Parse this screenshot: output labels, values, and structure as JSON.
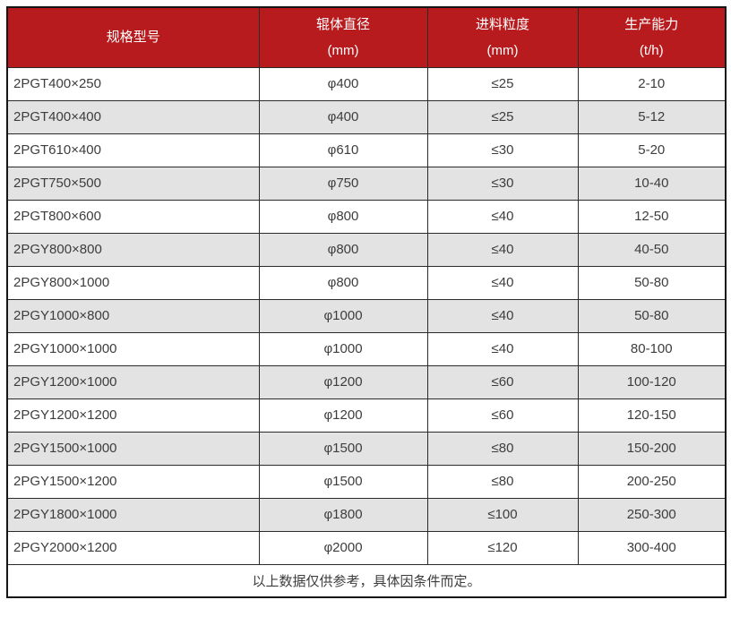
{
  "table": {
    "columns": [
      {
        "line1": "规格型号",
        "line2": ""
      },
      {
        "line1": "辊体直径",
        "line2": "(mm)"
      },
      {
        "line1": "进料粒度",
        "line2": "(mm)"
      },
      {
        "line1": "生产能力",
        "line2": "(t/h)"
      }
    ],
    "rows": [
      [
        "2PGT400×250",
        "φ400",
        "≤25",
        "2-10"
      ],
      [
        "2PGT400×400",
        "φ400",
        "≤25",
        "5-12"
      ],
      [
        "2PGT610×400",
        "φ610",
        "≤30",
        "5-20"
      ],
      [
        "2PGT750×500",
        "φ750",
        "≤30",
        "10-40"
      ],
      [
        "2PGT800×600",
        "φ800",
        "≤40",
        "12-50"
      ],
      [
        "2PGY800×800",
        "φ800",
        "≤40",
        "40-50"
      ],
      [
        "2PGY800×1000",
        "φ800",
        "≤40",
        "50-80"
      ],
      [
        "2PGY1000×800",
        "φ1000",
        "≤40",
        "50-80"
      ],
      [
        "2PGY1000×1000",
        "φ1000",
        "≤40",
        "80-100"
      ],
      [
        "2PGY1200×1000",
        "φ1200",
        "≤60",
        "100-120"
      ],
      [
        "2PGY1200×1200",
        "φ1200",
        "≤60",
        "120-150"
      ],
      [
        "2PGY1500×1000",
        "φ1500",
        "≤80",
        "150-200"
      ],
      [
        "2PGY1500×1200",
        "φ1500",
        "≤80",
        "200-250"
      ],
      [
        "2PGY1800×1000",
        "φ1800",
        "≤100",
        "250-300"
      ],
      [
        "2PGY2000×1200",
        "φ2000",
        "≤120",
        "300-400"
      ]
    ],
    "footer_note": "以上数据仅供参考，具体因条件而定。"
  },
  "colors": {
    "header_bg": "#b71b1e",
    "header_text": "#ffffff",
    "row_bg": "#ffffff",
    "row_alt_bg": "#e3e3e3",
    "border": "#2a2a2a",
    "outer_border": "#151515",
    "text": "#3d3d3d"
  }
}
